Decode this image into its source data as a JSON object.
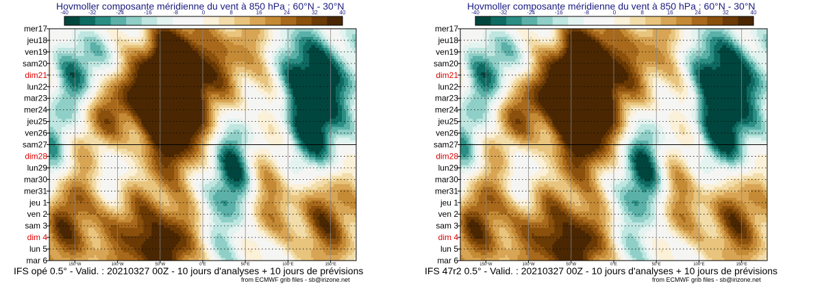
{
  "chart_data": [
    {
      "type": "heatmap",
      "title": "Hovmoller composante méridienne du vent à 850 hPa : 60°N - 30°N",
      "subtitle": "IFS opé 0.5° - Valid. : 20210327 00Z - 10 jours d'analyses + 10 jours de prévisions",
      "credit": "from ECMWF grib files - sb@irizone.net",
      "colorbar_ticks": [
        "-40",
        "-32",
        "-24",
        "-16",
        "-8",
        "0",
        "8",
        "16",
        "24",
        "32",
        "40"
      ],
      "colorbar_range": [
        -40,
        40
      ],
      "y_labels": [
        "mer17",
        "jeu18",
        "ven19",
        "sam20",
        "dim21",
        "lun22",
        "mar23",
        "mer24",
        "jeu25",
        "ven26",
        "sam27",
        "dim28",
        "lun29",
        "mar30",
        "mer31",
        "jeu 1",
        "ven 2",
        "sam 3",
        "dim 4",
        "lun 5",
        "mar 6"
      ],
      "sunday_labels": [
        "dim21",
        "dim28",
        "dim 4"
      ],
      "x_labels": [
        "150°W",
        "100°W",
        "50°W",
        "0°E",
        "50°E",
        "100°E",
        "150°E"
      ],
      "x_ticks_deg": [
        -150,
        -100,
        -50,
        0,
        50,
        100,
        150
      ],
      "x_range_deg": [
        -180,
        180
      ],
      "analysis_forecast_split": "sam27",
      "seed": 7
    },
    {
      "type": "heatmap",
      "title": "Hovmoller composante méridienne du vent à 850 hPa : 60°N - 30°N",
      "subtitle": "IFS 47r2 0.5° - Valid. : 20210327 00Z - 10 jours d'analyses + 10 jours de prévisions",
      "credit": "from ECMWF grib files - sb@irizone.net",
      "colorbar_ticks": [
        "-40",
        "-32",
        "-24",
        "-16",
        "-8",
        "0",
        "8",
        "16",
        "24",
        "32",
        "40"
      ],
      "colorbar_range": [
        -40,
        40
      ],
      "y_labels": [
        "mer17",
        "jeu18",
        "ven19",
        "sam20",
        "dim21",
        "lun22",
        "mar23",
        "mer24",
        "jeu25",
        "ven26",
        "sam27",
        "dim28",
        "lun29",
        "mar30",
        "mer31",
        "jeu 1",
        "ven 2",
        "sam 3",
        "dim 4",
        "lun 5",
        "mar 6"
      ],
      "sunday_labels": [
        "dim21",
        "dim28",
        "dim 4"
      ],
      "x_labels": [
        "150°W",
        "100°W",
        "50°W",
        "0°E",
        "50°E",
        "100°E",
        "150°E"
      ],
      "x_ticks_deg": [
        -150,
        -100,
        -50,
        0,
        50,
        100,
        150
      ],
      "x_range_deg": [
        -180,
        180
      ],
      "analysis_forecast_split": "sam27",
      "seed": 7
    }
  ],
  "colors": {
    "title": "#1a1a80",
    "sunday": "#dd0000",
    "grid": "#000000",
    "scale": [
      "#01463e",
      "#0e6b62",
      "#2a8e84",
      "#5bb1a8",
      "#8fcfc7",
      "#bfe6e0",
      "#e3f3f0",
      "#f6f6f6",
      "#f6f6f6",
      "#fbf0d8",
      "#f2ddaa",
      "#e8c47d",
      "#d8a555",
      "#c48a35",
      "#a8691c",
      "#8a500c",
      "#6b3a05",
      "#4a2702"
    ]
  }
}
